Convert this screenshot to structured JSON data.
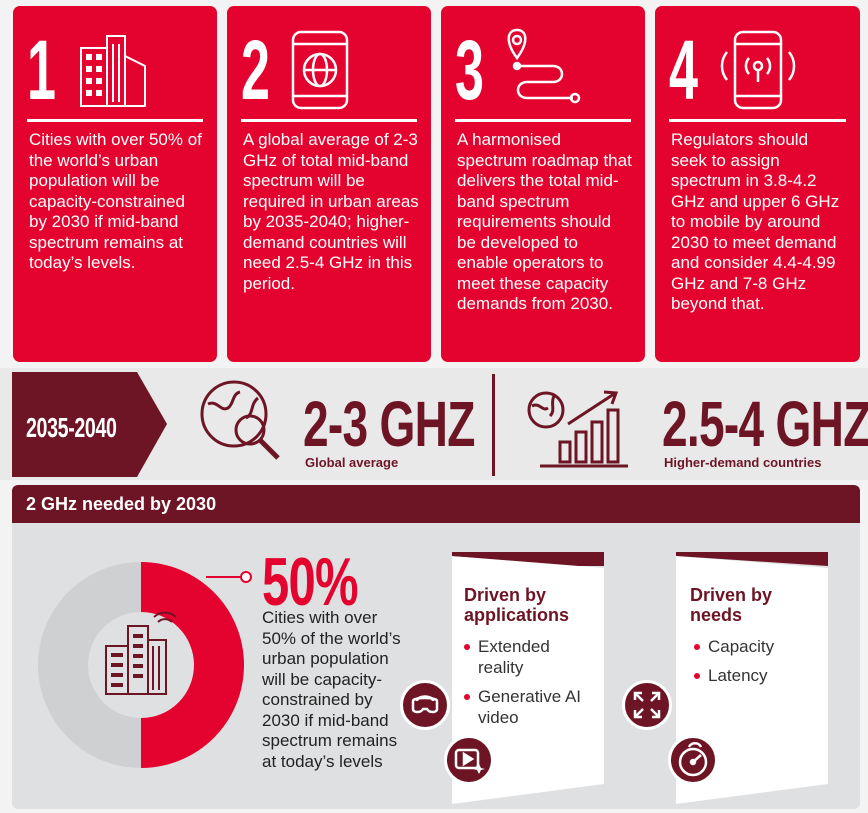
{
  "cards": [
    {
      "number": "1",
      "icon": "city-buildings-icon",
      "text": "Cities with over 50% of the world’s urban population will be capacity-constrained by 2030 if mid-band spectrum remains at today’s levels."
    },
    {
      "number": "2",
      "icon": "phone-globe-icon",
      "text": "A global average of 2-3 GHz of total mid-band spectrum will be required in urban areas by 2035-2040; higher-demand countries will need 2.5-4 GHz in this period."
    },
    {
      "number": "3",
      "icon": "roadmap-pin-icon",
      "text": "A harmonised spectrum roadmap that delivers the total mid-band spectrum requirements should be developed to enable operators to meet these capacity demands from 2030."
    },
    {
      "number": "4",
      "icon": "phone-signal-icon",
      "text": "Regulators should seek to assign spectrum in 3.8-4.2 GHz and upper 6 GHz to mobile by around 2030 to meet demand and consider 4.4-4.99 GHz and 7-8 GHz beyond that."
    }
  ],
  "timeline": {
    "period": "2035-2040",
    "global": {
      "value": "2-3 GHZ",
      "label": "Global average",
      "icon": "globe-magnifier-icon"
    },
    "high": {
      "value": "2.5-4 GHZ",
      "label": "Higher-demand countries",
      "icon": "globe-bar-chart-icon"
    }
  },
  "section": {
    "title": "2 GHz needed by 2030",
    "stat": {
      "value": "50%",
      "fraction": 0.5,
      "text": "Cities with over 50% of the world’s urban population will be capacity-constrained by 2030 if mid-band spectrum remains at today’s levels"
    },
    "applications": {
      "title": "Driven by applications",
      "items": [
        "Extended reality",
        "Generative AI video"
      ],
      "icons": [
        "vr-headset-icon",
        "video-sparkle-icon"
      ]
    },
    "needs": {
      "title": "Driven by needs",
      "items": [
        "Capacity",
        "Latency"
      ],
      "icons": [
        "expand-arrows-icon",
        "speedometer-icon"
      ]
    }
  },
  "colors": {
    "red": "#e4032e",
    "maroon": "#6d1524",
    "grey": "#dfe0e1"
  }
}
